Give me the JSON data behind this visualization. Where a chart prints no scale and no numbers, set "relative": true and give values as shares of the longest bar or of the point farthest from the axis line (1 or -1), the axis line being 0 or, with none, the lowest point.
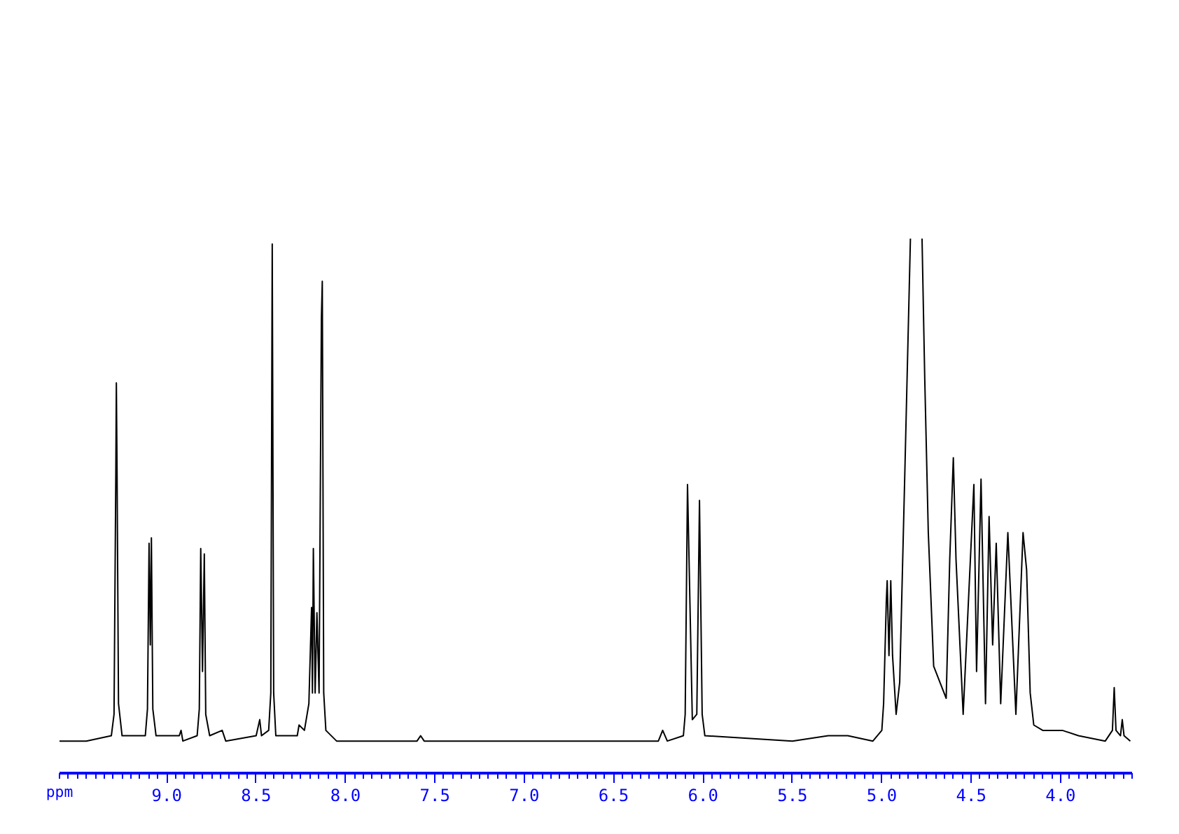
{
  "chart_data": {
    "type": "line",
    "relative": true,
    "xlabel": "ppm",
    "xlim": [
      9.6,
      3.6
    ],
    "xticks": [
      {
        "value": 9.0,
        "label": "9.0"
      },
      {
        "value": 8.5,
        "label": "8.5"
      },
      {
        "value": 8.0,
        "label": "8.0"
      },
      {
        "value": 7.5,
        "label": "7.5"
      },
      {
        "value": 7.0,
        "label": "7.0"
      },
      {
        "value": 6.5,
        "label": "6.5"
      },
      {
        "value": 6.0,
        "label": "6.0"
      },
      {
        "value": 5.5,
        "label": "5.5"
      },
      {
        "value": 5.0,
        "label": "5.0"
      },
      {
        "value": 4.5,
        "label": "4.5"
      },
      {
        "value": 4.0,
        "label": "4.0"
      }
    ],
    "grid": false,
    "tick_labels": "x",
    "marker": "none",
    "line_style": "solid",
    "series": [
      {
        "color": "#000000",
        "x": [
          9.6,
          9.45,
          9.31,
          9.295,
          9.285,
          9.282,
          9.278,
          9.27,
          9.25,
          9.12,
          9.108,
          9.099,
          9.092,
          9.086,
          9.078,
          9.06,
          8.93,
          8.92,
          8.91,
          8.83,
          8.818,
          8.81,
          8.8,
          8.79,
          8.782,
          8.76,
          8.69,
          8.67,
          8.5,
          8.48,
          8.47,
          8.43,
          8.418,
          8.41,
          8.402,
          8.39,
          8.27,
          8.26,
          8.23,
          8.205,
          8.19,
          8.185,
          8.18,
          8.17,
          8.16,
          8.148,
          8.135,
          8.13,
          8.122,
          8.11,
          8.05,
          7.6,
          7.58,
          7.56,
          7.0,
          6.6,
          6.25,
          6.226,
          6.2,
          6.11,
          6.1,
          6.087,
          6.06,
          6.035,
          6.02,
          6.005,
          5.99,
          5.5,
          5.3,
          5.19,
          5.05,
          5.0,
          4.99,
          4.975,
          4.97,
          4.96,
          4.95,
          4.94,
          4.92,
          4.9,
          4.87,
          4.84,
          4.81,
          4.775,
          4.76,
          4.74,
          4.71,
          4.64,
          4.62,
          4.6,
          4.585,
          4.545,
          4.485,
          4.47,
          4.445,
          4.42,
          4.4,
          4.38,
          4.36,
          4.335,
          4.295,
          4.25,
          4.21,
          4.19,
          4.17,
          4.15,
          4.1,
          3.99,
          3.9,
          3.75,
          3.71,
          3.7,
          3.69,
          3.665,
          3.655,
          3.645,
          3.61
        ],
        "values": [
          0.06,
          0.06,
          0.07,
          0.11,
          0.56,
          0.73,
          0.56,
          0.13,
          0.07,
          0.07,
          0.12,
          0.43,
          0.24,
          0.44,
          0.12,
          0.07,
          0.07,
          0.08,
          0.06,
          0.07,
          0.12,
          0.42,
          0.19,
          0.41,
          0.11,
          0.07,
          0.08,
          0.06,
          0.07,
          0.1,
          0.07,
          0.08,
          0.15,
          0.99,
          0.15,
          0.07,
          0.07,
          0.09,
          0.08,
          0.13,
          0.31,
          0.15,
          0.42,
          0.15,
          0.3,
          0.15,
          0.85,
          0.92,
          0.15,
          0.08,
          0.06,
          0.06,
          0.07,
          0.06,
          0.06,
          0.06,
          0.06,
          0.08,
          0.06,
          0.07,
          0.11,
          0.54,
          0.1,
          0.11,
          0.51,
          0.11,
          0.07,
          0.06,
          0.07,
          0.07,
          0.06,
          0.08,
          0.13,
          0.32,
          0.36,
          0.22,
          0.36,
          0.22,
          0.11,
          0.17,
          0.58,
          1.0,
          null,
          1.0,
          0.74,
          0.45,
          0.2,
          0.14,
          0.4,
          0.59,
          0.4,
          0.11,
          0.54,
          0.19,
          0.55,
          0.13,
          0.48,
          0.24,
          0.43,
          0.13,
          0.45,
          0.11,
          0.45,
          0.38,
          0.15,
          0.09,
          0.08,
          0.08,
          0.07,
          0.06,
          0.08,
          0.16,
          0.08,
          0.07,
          0.1,
          0.07,
          0.06
        ]
      }
    ]
  }
}
